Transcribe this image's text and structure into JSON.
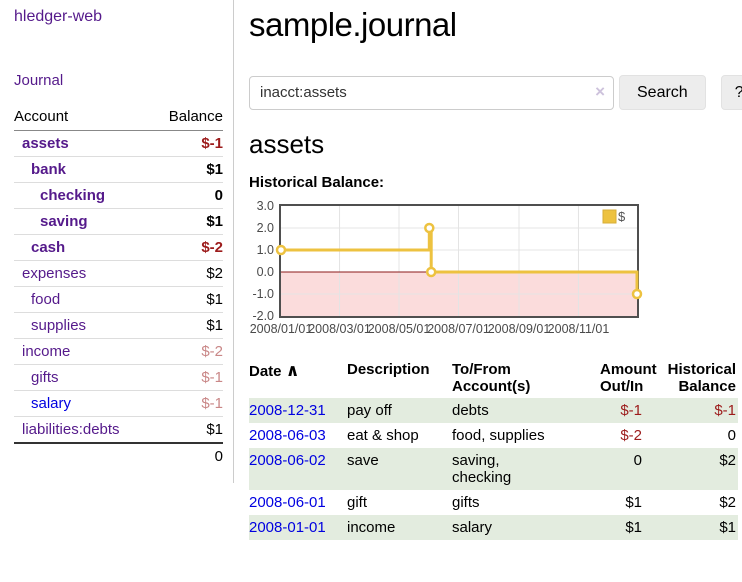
{
  "app": {
    "title": "hledger-web",
    "journal_link": "Journal"
  },
  "sidebar": {
    "header": {
      "account": "Account",
      "balance": "Balance"
    },
    "accounts": [
      {
        "name": "assets",
        "balance": "$-1",
        "indent": 1,
        "bold": true,
        "neg": "strong",
        "blue": false
      },
      {
        "name": "bank",
        "balance": "$1",
        "indent": 2,
        "bold": true,
        "neg": null,
        "blue": false
      },
      {
        "name": "checking",
        "balance": "0",
        "indent": 3,
        "bold": true,
        "neg": null,
        "blue": false
      },
      {
        "name": "saving",
        "balance": "$1",
        "indent": 3,
        "bold": true,
        "neg": null,
        "blue": false
      },
      {
        "name": "cash",
        "balance": "$-2",
        "indent": 2,
        "bold": true,
        "neg": "strong",
        "blue": false
      },
      {
        "name": "expenses",
        "balance": "$2",
        "indent": 1,
        "bold": false,
        "neg": null,
        "blue": false
      },
      {
        "name": "food",
        "balance": "$1",
        "indent": 2,
        "bold": false,
        "neg": null,
        "blue": false
      },
      {
        "name": "supplies",
        "balance": "$1",
        "indent": 2,
        "bold": false,
        "neg": null,
        "blue": false
      },
      {
        "name": "income",
        "balance": "$-2",
        "indent": 1,
        "bold": false,
        "neg": "soft",
        "blue": false
      },
      {
        "name": "gifts",
        "balance": "$-1",
        "indent": 2,
        "bold": false,
        "neg": "soft",
        "blue": false
      },
      {
        "name": "salary",
        "balance": "$-1",
        "indent": 2,
        "bold": false,
        "neg": "soft",
        "blue": true
      },
      {
        "name": "liabilities:debts",
        "balance": "$1",
        "indent": 1,
        "bold": false,
        "neg": null,
        "blue": false
      }
    ],
    "total": "0"
  },
  "header": {
    "title": "sample.journal"
  },
  "search": {
    "value": "inacct:assets",
    "clear_icon": "×",
    "button_label": "Search",
    "help_label": "?"
  },
  "main": {
    "account_title": "assets",
    "chart_label": "Historical Balance:"
  },
  "chart_data": {
    "type": "line",
    "step": true,
    "title": "Historical Balance",
    "x_range": [
      "2008-01-01",
      "2008-12-31"
    ],
    "ylim": [
      -2,
      3
    ],
    "y_ticks": [
      3,
      2,
      1,
      0,
      -1,
      -2
    ],
    "x_ticks": [
      "2008/01/01",
      "2008/03/01",
      "2008/05/01",
      "2008/07/01",
      "2008/09/01",
      "2008/11/01"
    ],
    "series": [
      {
        "name": "$",
        "color": "#edc240",
        "points": [
          {
            "date": "2008-01-01",
            "value": 1
          },
          {
            "date": "2008-06-01",
            "value": 2
          },
          {
            "date": "2008-06-03",
            "value": 0
          },
          {
            "date": "2008-12-31",
            "value": -1
          }
        ]
      }
    ],
    "legend": {
      "label": "$",
      "position": "top-right"
    },
    "grid": true,
    "negative_fill": "#fbdcdc",
    "zero_line_color": "#8b1a1a",
    "border_color": "#4f4f4f",
    "grid_color": "#e4e4e4",
    "tick_color": "#4a4a4a"
  },
  "register": {
    "headers": {
      "date": "Date",
      "description": "Description",
      "tofrom_line1": "To/From",
      "tofrom_line2": "Account(s)",
      "amount_line1": "Amount",
      "amount_line2": "Out/In",
      "balance_line1": "Historical",
      "balance_line2": "Balance"
    },
    "sort_indicator": "∧",
    "rows": [
      {
        "date": "2008-12-31",
        "description": "pay off",
        "accounts": "debts",
        "amount": "$-1",
        "balance": "$-1"
      },
      {
        "date": "2008-06-03",
        "description": "eat & shop",
        "accounts": "food, supplies",
        "amount": "$-2",
        "balance": "0"
      },
      {
        "date": "2008-06-02",
        "description": "save",
        "accounts": "saving,\nchecking",
        "amount": "0",
        "balance": "$2"
      },
      {
        "date": "2008-06-01",
        "description": "gift",
        "accounts": "gifts",
        "amount": "$1",
        "balance": "$2"
      },
      {
        "date": "2008-01-01",
        "description": "income",
        "accounts": "salary",
        "amount": "$1",
        "balance": "$1"
      }
    ]
  },
  "colors": {
    "accent_purple": "#551a8b",
    "link_blue": "#0000e0",
    "negative_strong": "#9c1b1b",
    "negative_soft": "#c98787",
    "row_stripe_green": "#e3ecdf",
    "button_gray": "#ededed"
  }
}
